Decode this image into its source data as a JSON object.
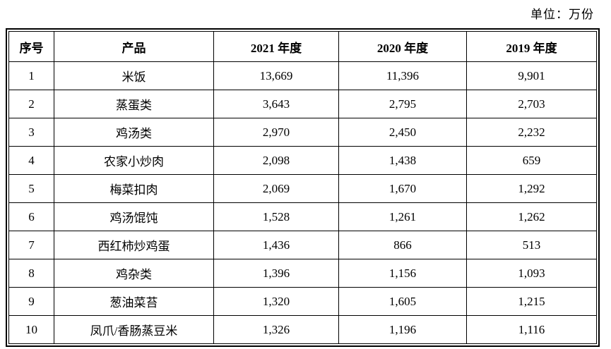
{
  "unit_label": "单位：万份",
  "table": {
    "headers": [
      "序号",
      "产品",
      "2021 年度",
      "2020 年度",
      "2019 年度"
    ],
    "rows": [
      {
        "index": "1",
        "product": "米饭",
        "y2021": "13,669",
        "y2020": "11,396",
        "y2019": "9,901"
      },
      {
        "index": "2",
        "product": "蒸蛋类",
        "y2021": "3,643",
        "y2020": "2,795",
        "y2019": "2,703"
      },
      {
        "index": "3",
        "product": "鸡汤类",
        "y2021": "2,970",
        "y2020": "2,450",
        "y2019": "2,232"
      },
      {
        "index": "4",
        "product": "农家小炒肉",
        "y2021": "2,098",
        "y2020": "1,438",
        "y2019": "659"
      },
      {
        "index": "5",
        "product": "梅菜扣肉",
        "y2021": "2,069",
        "y2020": "1,670",
        "y2019": "1,292"
      },
      {
        "index": "6",
        "product": "鸡汤馄饨",
        "y2021": "1,528",
        "y2020": "1,261",
        "y2019": "1,262"
      },
      {
        "index": "7",
        "product": "西红柿炒鸡蛋",
        "y2021": "1,436",
        "y2020": "866",
        "y2019": "513"
      },
      {
        "index": "8",
        "product": "鸡杂类",
        "y2021": "1,396",
        "y2020": "1,156",
        "y2019": "1,093"
      },
      {
        "index": "9",
        "product": "葱油菜苔",
        "y2021": "1,320",
        "y2020": "1,605",
        "y2019": "1,215"
      },
      {
        "index": "10",
        "product": "凤爪/香肠蒸豆米",
        "y2021": "1,326",
        "y2020": "1,196",
        "y2019": "1,116"
      }
    ]
  },
  "colors": {
    "text": "#000000",
    "border": "#000000",
    "background": "#ffffff"
  }
}
